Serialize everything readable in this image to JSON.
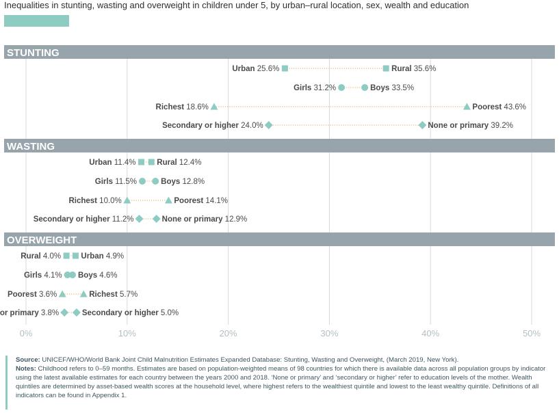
{
  "title": "Inequalities in stunting, wasting and overweight in children under 5, by urban–rural location, sex, wealth and education",
  "colors": {
    "accent": "#8ecbc2",
    "band": "#97a4ac",
    "connector": "#e9a24a"
  },
  "chart_data": {
    "type": "dot-plot",
    "title": "Inequalities in stunting, wasting and overweight in children under 5, by urban–rural location, sex, wealth and education",
    "xlim": [
      0,
      50
    ],
    "x_ticks": [
      "0%",
      "10%",
      "20%",
      "30%",
      "40%",
      "50%"
    ],
    "sections": [
      {
        "name": "STUNTING",
        "rows": [
          {
            "shape": "square",
            "low": {
              "label": "Urban",
              "value": 25.6,
              "text": "25.6%"
            },
            "high": {
              "label": "Rural",
              "value": 35.6,
              "text": "35.6%"
            }
          },
          {
            "shape": "circle",
            "low": {
              "label": "Girls",
              "value": 31.2,
              "text": "31.2%"
            },
            "high": {
              "label": "Boys",
              "value": 33.5,
              "text": "33.5%"
            }
          },
          {
            "shape": "triangle",
            "low": {
              "label": "Richest",
              "value": 18.6,
              "text": "18.6%"
            },
            "high": {
              "label": "Poorest",
              "value": 43.6,
              "text": "43.6%"
            }
          },
          {
            "shape": "diamond",
            "low": {
              "label": "Secondary or higher",
              "value": 24.0,
              "text": "24.0%"
            },
            "high": {
              "label": "None or primary",
              "value": 39.2,
              "text": "39.2%"
            }
          }
        ]
      },
      {
        "name": "WASTING",
        "rows": [
          {
            "shape": "square",
            "low": {
              "label": "Urban",
              "value": 11.4,
              "text": "11.4%"
            },
            "high": {
              "label": "Rural",
              "value": 12.4,
              "text": "12.4%"
            }
          },
          {
            "shape": "circle",
            "low": {
              "label": "Girls",
              "value": 11.5,
              "text": "11.5%"
            },
            "high": {
              "label": "Boys",
              "value": 12.8,
              "text": "12.8%"
            }
          },
          {
            "shape": "triangle",
            "low": {
              "label": "Richest",
              "value": 10.0,
              "text": "10.0%"
            },
            "high": {
              "label": "Poorest",
              "value": 14.1,
              "text": "14.1%"
            }
          },
          {
            "shape": "diamond",
            "low": {
              "label": "Secondary or higher",
              "value": 11.2,
              "text": "11.2%"
            },
            "high": {
              "label": "None or primary",
              "value": 12.9,
              "text": "12.9%"
            }
          }
        ]
      },
      {
        "name": "OVERWEIGHT",
        "rows": [
          {
            "shape": "square",
            "low": {
              "label": "Rural",
              "value": 4.0,
              "text": "4.0%"
            },
            "high": {
              "label": "Urban",
              "value": 4.9,
              "text": "4.9%"
            }
          },
          {
            "shape": "circle",
            "low": {
              "label": "Girls",
              "value": 4.1,
              "text": "4.1%"
            },
            "high": {
              "label": "Boys",
              "value": 4.6,
              "text": "4.6%"
            }
          },
          {
            "shape": "triangle",
            "low": {
              "label": "Poorest",
              "value": 3.6,
              "text": "3.6%"
            },
            "high": {
              "label": "Richest",
              "value": 5.7,
              "text": "5.7%"
            }
          },
          {
            "shape": "diamond",
            "low": {
              "label": "None or primary",
              "value": 3.8,
              "text": "3.8%"
            },
            "high": {
              "label": "Secondary or higher",
              "value": 5.0,
              "text": "5.0%"
            }
          }
        ]
      }
    ]
  },
  "notes": {
    "source_label": "Source:",
    "source_text": "UNICEF/WHO/World Bank Joint Child Malnutrition Estimates Expanded Database: Stunting, Wasting and Overweight, (March 2019, New York).",
    "notes_label": "Notes:",
    "notes_text": "Childhood refers to 0–59 months. Estimates are based on population-weighted means of 98 countries for which there is available data across all population groups by indicator using the latest available estimates for each country between the years 2000 and 2018. ‘None or primary’ and ‘secondary or higher’ refer to education levels of the mother. Wealth quintiles are determined by asset-based wealth scores at the household level, where highest refers to the wealthiest quintile and lowest to the least wealthy quintile. Definitions of all indicators can be found in Appendix 1."
  }
}
